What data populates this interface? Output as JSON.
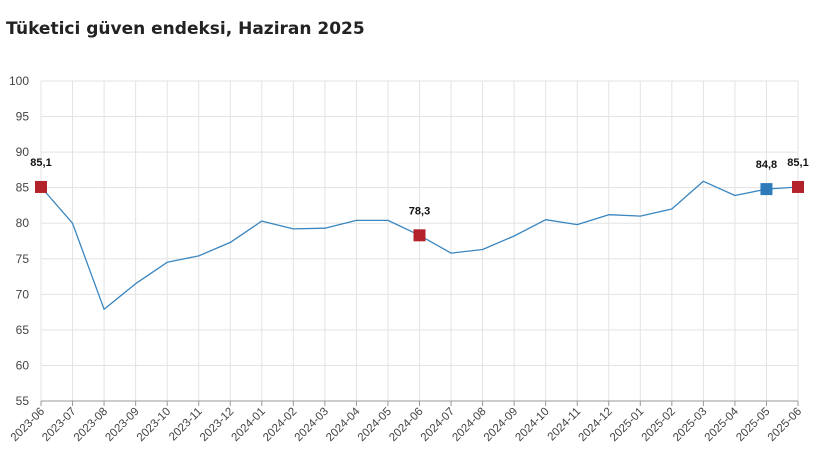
{
  "title": "Tüketici güven endeksi, Haziran 2025",
  "chart_data": {
    "type": "line",
    "title": "Tüketici güven endeksi, Haziran 2025",
    "xlabel": "",
    "ylabel": "",
    "ylim": [
      55,
      100
    ],
    "yticks": [
      55,
      60,
      65,
      70,
      75,
      80,
      85,
      90,
      95,
      100
    ],
    "grid": true,
    "categories": [
      "2023-06",
      "2023-07",
      "2023-08",
      "2023-09",
      "2023-10",
      "2023-11",
      "2023-12",
      "2024-01",
      "2024-02",
      "2024-03",
      "2024-04",
      "2024-05",
      "2024-06",
      "2024-07",
      "2024-08",
      "2024-09",
      "2024-10",
      "2024-11",
      "2024-12",
      "2025-01",
      "2025-02",
      "2025-03",
      "2025-04",
      "2025-05",
      "2025-06"
    ],
    "series": [
      {
        "values": [
          85.1,
          80.0,
          67.9,
          71.5,
          74.5,
          75.4,
          77.3,
          80.3,
          79.2,
          79.3,
          80.4,
          80.4,
          78.3,
          75.8,
          76.3,
          78.2,
          80.5,
          79.8,
          81.2,
          81.0,
          82.0,
          85.9,
          83.9,
          84.8,
          85.1
        ]
      }
    ],
    "line_color": "#3a86c0",
    "highlight_points": [
      {
        "category": "2023-06",
        "label": "85,1",
        "color": "#b3212a"
      },
      {
        "category": "2024-06",
        "label": "78,3",
        "color": "#b3212a"
      },
      {
        "category": "2025-05",
        "label": "84,8",
        "color": "#2f7ab8"
      },
      {
        "category": "2025-06",
        "label": "85,1",
        "color": "#b3212a"
      }
    ]
  }
}
